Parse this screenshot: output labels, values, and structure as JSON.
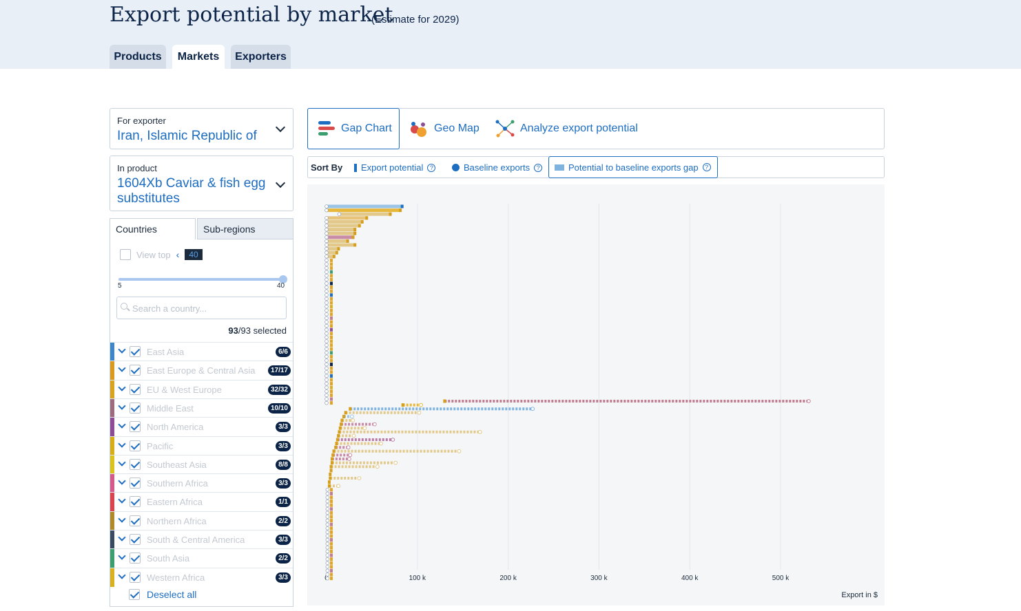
{
  "header": {
    "title": "Export potential by market",
    "subtitle": "(Estimate for 2029)",
    "tabs": [
      {
        "label": "Products",
        "active": false
      },
      {
        "label": "Markets",
        "active": true
      },
      {
        "label": "Exporters",
        "active": false
      }
    ]
  },
  "filters": {
    "exporter_label": "For exporter",
    "exporter_value": "Iran, Islamic Republic of",
    "product_label": "In product",
    "product_value_line1": "1604Xb Caviar & fish egg",
    "product_value_line2": "substitutes"
  },
  "subtabs": {
    "countries": "Countries",
    "subregions": "Sub-regions"
  },
  "view_top": {
    "label": "View top",
    "value": "40",
    "min": "5",
    "max": "40"
  },
  "search": {
    "placeholder": "Search a country..."
  },
  "selection": {
    "count": "93",
    "total": "/93 selected"
  },
  "regions": [
    {
      "name": "East Asia",
      "badge": "6/6",
      "color": "#3f86c6"
    },
    {
      "name": "East Europe & Central Asia",
      "badge": "17/17",
      "color": "#d99a1f"
    },
    {
      "name": "EU & West Europe",
      "badge": "32/32",
      "color": "#d9a21f"
    },
    {
      "name": "Middle East",
      "badge": "10/10",
      "color": "#9c6b7d"
    },
    {
      "name": "North America",
      "badge": "3/3",
      "color": "#8c4d96"
    },
    {
      "name": "Pacific",
      "badge": "3/3",
      "color": "#d8ad1a"
    },
    {
      "name": "Southeast Asia",
      "badge": "8/8",
      "color": "#d9c11e"
    },
    {
      "name": "Southern Africa",
      "badge": "3/3",
      "color": "#d45a8c"
    },
    {
      "name": "Eastern Africa",
      "badge": "1/1",
      "color": "#d9444f"
    },
    {
      "name": "Northern Africa",
      "badge": "2/2",
      "color": "#b08a2a"
    },
    {
      "name": "South & Central America",
      "badge": "3/3",
      "color": "#3a4a60"
    },
    {
      "name": "South Asia",
      "badge": "2/2",
      "color": "#3c9e6e"
    },
    {
      "name": "Western Africa",
      "badge": "3/3",
      "color": "#d9b01f"
    }
  ],
  "deselect_label": "Deselect all",
  "views": [
    {
      "label": "Gap Chart",
      "active": true
    },
    {
      "label": "Geo Map",
      "active": false
    },
    {
      "label": "Analyze export potential",
      "active": false
    }
  ],
  "sort": {
    "label": "Sort By",
    "options": [
      {
        "label": "Export potential",
        "active": false
      },
      {
        "label": "Baseline exports",
        "active": false
      },
      {
        "label": "Potential to baseline exports gap",
        "active": true
      }
    ],
    "help": "?"
  },
  "colors": {
    "accent": "#1d6dc1",
    "navy": "#0b2346",
    "baseline": "#a9c7ef"
  },
  "chart_data": {
    "type": "bar",
    "x_unit_label": "Export in $",
    "x_ticks": [
      0,
      100000,
      200000,
      300000,
      400000,
      500000
    ],
    "x_tick_labels": [
      "0",
      "100 k",
      "200 k",
      "300 k",
      "400 k",
      "500 k"
    ],
    "xlim": [
      0,
      560000
    ],
    "group_a": {
      "potential_rows": [
        {
          "potential": 84000,
          "baseline": 0,
          "color": "#9bc3e6",
          "solid": true
        },
        {
          "potential": 82000,
          "baseline": 0,
          "color": "#e8b83a",
          "solid": true
        },
        {
          "potential": 71000,
          "baseline": 14000,
          "color": "#e2c98a",
          "solid": true
        },
        {
          "potential": 45000,
          "baseline": 0,
          "color": "#e8c37a",
          "solid": true
        },
        {
          "potential": 40000,
          "baseline": 0,
          "color": "#e2c98a",
          "solid": true
        },
        {
          "potential": 37000,
          "baseline": 0,
          "color": "#e2c98a",
          "solid": true
        },
        {
          "potential": 32000,
          "baseline": 0,
          "color": "#e2c98a",
          "solid": true
        },
        {
          "potential": 32000,
          "baseline": 0,
          "color": "#e2c98a",
          "solid": true
        },
        {
          "potential": 30000,
          "baseline": 0,
          "color": "#c98ca6",
          "solid": true
        },
        {
          "potential": 24000,
          "baseline": 0,
          "color": "#e2c98a",
          "solid": true
        },
        {
          "potential": 32000,
          "baseline": 0,
          "color": "#e2c98a",
          "solid": true
        },
        {
          "potential": 14000,
          "baseline": 0,
          "color": "#e2c98a",
          "solid": true
        },
        {
          "potential": 12000,
          "baseline": 0,
          "color": "#e2c98a",
          "solid": true
        },
        {
          "potential": 9000,
          "baseline": 0,
          "color": "#e2c98a",
          "solid": true
        }
      ],
      "small_count": 38
    },
    "group_b": [
      {
        "potential": 130000,
        "baseline": 531000,
        "color": "#c07d90"
      },
      {
        "potential": 84000,
        "baseline": 104000,
        "color": "#e8b83a"
      },
      {
        "potential": 26000,
        "baseline": 227000,
        "color": "#7fb3df"
      },
      {
        "potential": 21000,
        "baseline": 102000,
        "color": "#e2c98a"
      },
      {
        "potential": 19000,
        "baseline": 28000,
        "color": "#9bc3e6"
      },
      {
        "potential": 17000,
        "baseline": 29000,
        "color": "#e2c98a"
      },
      {
        "potential": 16000,
        "baseline": 53000,
        "color": "#c98ca6"
      },
      {
        "potential": 15000,
        "baseline": 42000,
        "color": "#e2c98a"
      },
      {
        "potential": 14000,
        "baseline": 169000,
        "color": "#e2c98a"
      },
      {
        "potential": 13000,
        "baseline": 30000,
        "color": "#e2c98a"
      },
      {
        "potential": 12000,
        "baseline": 73000,
        "color": "#b97ba8"
      },
      {
        "potential": 11000,
        "baseline": 60000,
        "color": "#e2c98a"
      },
      {
        "potential": 10000,
        "baseline": 24000,
        "color": "#c98ca6"
      },
      {
        "potential": 8000,
        "baseline": 146000,
        "color": "#e2c98a"
      },
      {
        "potential": 7000,
        "baseline": 26000,
        "color": "#c98ca6"
      },
      {
        "potential": 6000,
        "baseline": 25000,
        "color": "#c98ca6"
      },
      {
        "potential": 6000,
        "baseline": 76000,
        "color": "#e2c98a"
      },
      {
        "potential": 5000,
        "baseline": 56000,
        "color": "#e2c98a"
      },
      {
        "potential": 5000,
        "baseline": 0,
        "color": "#e2c98a"
      },
      {
        "potential": 4000,
        "baseline": 0,
        "color": "#e2c98a"
      },
      {
        "potential": 4000,
        "baseline": 36000,
        "color": "#e2c98a"
      },
      {
        "potential": 3000,
        "baseline": 0,
        "color": "#e2c98a"
      },
      {
        "potential": 3000,
        "baseline": 13000,
        "color": "#e2c98a"
      }
    ]
  }
}
